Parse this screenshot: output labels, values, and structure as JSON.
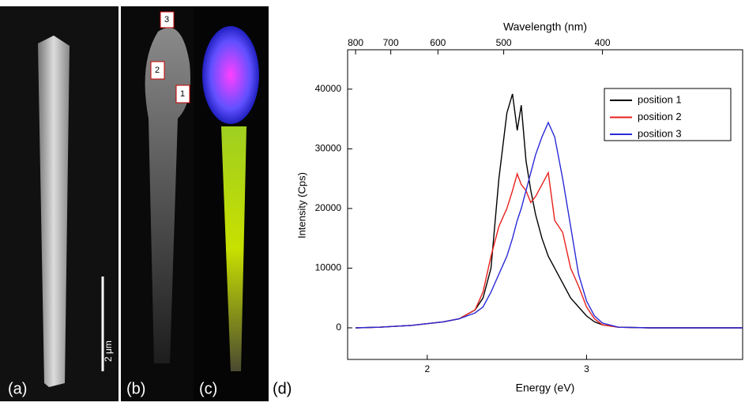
{
  "panels": {
    "a": "(a)",
    "b": "(b)",
    "c": "(c)",
    "d": "(d)",
    "scale_bar": "2 μm",
    "markers": [
      "1",
      "2",
      "3"
    ]
  },
  "chart_data": {
    "type": "line",
    "x_title": "Energy (eV)",
    "y_title": "Intensity (Cps)",
    "x2_title": "Wavelength (nm)",
    "x": [
      1.55,
      1.7,
      1.9,
      2.0,
      2.1,
      2.2,
      2.3,
      2.35,
      2.4,
      2.45,
      2.5,
      2.535,
      2.565,
      2.59,
      2.62,
      2.65,
      2.68,
      2.72,
      2.76,
      2.8,
      2.85,
      2.9,
      2.95,
      3.0,
      3.05,
      3.1,
      3.2,
      3.4,
      3.98
    ],
    "series": [
      {
        "name": "position 1",
        "color": "#000000",
        "values": [
          0,
          100,
          400,
          700,
          1000,
          1500,
          3000,
          5000,
          10000,
          25000,
          36000,
          39200,
          33100,
          37300,
          28000,
          23000,
          19000,
          15000,
          12000,
          10000,
          7500,
          5000,
          3500,
          2000,
          1000,
          500,
          100,
          0,
          0
        ]
      },
      {
        "name": "position 2",
        "color": "#e8201c",
        "values": [
          0,
          100,
          400,
          700,
          1000,
          1500,
          3000,
          6000,
          12000,
          17000,
          20000,
          23000,
          25800,
          24000,
          23000,
          21000,
          22000,
          24000,
          26000,
          18000,
          16000,
          10000,
          7000,
          3500,
          1500,
          500,
          100,
          0,
          0
        ]
      },
      {
        "name": "position 3",
        "color": "#2a2ad8",
        "values": [
          0,
          100,
          400,
          700,
          1000,
          1500,
          2500,
          3500,
          6000,
          9000,
          12000,
          15000,
          18000,
          20000,
          23000,
          26000,
          29000,
          32000,
          34400,
          32000,
          25000,
          17000,
          9000,
          4500,
          2000,
          800,
          100,
          0,
          0
        ]
      }
    ],
    "xlim": [
      1.5,
      3.98
    ],
    "xticks": [
      2,
      3
    ],
    "ylim": [
      -5300,
      46600
    ],
    "yticks": [
      0,
      10000,
      20000,
      30000,
      40000
    ],
    "x2ticks": [
      {
        "value": 1.55,
        "label": "800"
      },
      {
        "value": 1.771,
        "label": "700"
      },
      {
        "value": 2.067,
        "label": "600"
      },
      {
        "value": 2.48,
        "label": "500"
      },
      {
        "value": 3.1,
        "label": "400"
      }
    ],
    "legend": "top-right"
  }
}
